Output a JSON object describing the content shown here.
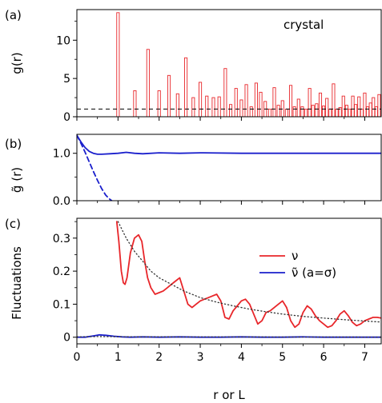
{
  "chart_data": [
    {
      "panel_label": "(a)",
      "type": "bar",
      "ylabel": "g(r)",
      "annotation": "crystal",
      "xlim": [
        0,
        7.4
      ],
      "ylim": [
        0,
        14
      ],
      "yticks": [
        0,
        5,
        10
      ],
      "reference_line": 1,
      "series": [
        {
          "name": "",
          "color": "#e8262a",
          "x": [
            1.0,
            1.41,
            1.73,
            2.0,
            2.24,
            2.45,
            2.65,
            2.83,
            3.0,
            3.16,
            3.32,
            3.46,
            3.61,
            3.74,
            3.87,
            4.0,
            4.12,
            4.24,
            4.36,
            4.47,
            4.58,
            4.69,
            4.8,
            4.9,
            5.0,
            5.1,
            5.2,
            5.29,
            5.39,
            5.48,
            5.57,
            5.66,
            5.74,
            5.83,
            5.92,
            6.0,
            6.08,
            6.16,
            6.24,
            6.32,
            6.4,
            6.48,
            6.56,
            6.63,
            6.71,
            6.78,
            6.86,
            6.93,
            7.0,
            7.07,
            7.14,
            7.21,
            7.28,
            7.35
          ],
          "values": [
            13.6,
            3.4,
            8.8,
            3.4,
            5.4,
            3.0,
            7.7,
            2.5,
            4.5,
            2.7,
            2.5,
            2.6,
            6.3,
            1.6,
            3.7,
            2.2,
            4.2,
            1.3,
            4.4,
            3.2,
            2.0,
            1.0,
            3.8,
            1.5,
            2.1,
            1.0,
            4.1,
            1.3,
            2.3,
            1.3,
            1.0,
            3.7,
            1.5,
            1.7,
            3.1,
            1.4,
            2.4,
            1.0,
            4.3,
            1.0,
            1.2,
            2.7,
            1.5,
            1.0,
            2.7,
            1.6,
            2.6,
            1.0,
            3.1,
            1.3,
            1.8,
            2.5,
            1.3,
            2.9
          ]
        }
      ]
    },
    {
      "panel_label": "(b)",
      "type": "line",
      "ylabel": "g̃ (r)",
      "xlim": [
        0,
        7.4
      ],
      "ylim": [
        0,
        1.4
      ],
      "yticks": [
        0.0,
        1.0
      ],
      "series": [
        {
          "name": "",
          "color": "#1a1fcc",
          "style": "solid",
          "x": [
            0,
            0.1,
            0.2,
            0.3,
            0.4,
            0.5,
            0.6,
            0.8,
            1.0,
            1.2,
            1.4,
            1.6,
            2.0,
            2.5,
            3.0,
            4.0,
            5.0,
            6.0,
            7.0,
            7.4
          ],
          "y": [
            1.38,
            1.24,
            1.12,
            1.04,
            1.0,
            0.98,
            0.98,
            0.99,
            1.0,
            1.02,
            1.0,
            0.99,
            1.01,
            1.0,
            1.01,
            1.0,
            1.0,
            1.0,
            1.0,
            1.0
          ]
        },
        {
          "name": "",
          "color": "#1a1fcc",
          "style": "dashed",
          "x": [
            0,
            0.1,
            0.2,
            0.3,
            0.4,
            0.5,
            0.6,
            0.7,
            0.8,
            0.85
          ],
          "y": [
            1.38,
            1.21,
            1.02,
            0.82,
            0.62,
            0.43,
            0.26,
            0.12,
            0.03,
            0.0
          ]
        }
      ]
    },
    {
      "panel_label": "(c)",
      "type": "line",
      "xlabel": "r or L",
      "ylabel": "Fluctuations",
      "xlim": [
        0,
        7.4
      ],
      "ylim": [
        -0.02,
        0.36
      ],
      "yticks": [
        0,
        0.1,
        0.2,
        0.3
      ],
      "xticks": [
        0,
        1,
        2,
        3,
        4,
        5,
        6,
        7
      ],
      "legend_position": "upper-right",
      "series": [
        {
          "name": "ν",
          "color": "#e8262a",
          "style": "solid",
          "x": [
            0.97,
            1.02,
            1.08,
            1.13,
            1.17,
            1.22,
            1.3,
            1.4,
            1.5,
            1.58,
            1.65,
            1.72,
            1.8,
            1.9,
            2.0,
            2.1,
            2.2,
            2.3,
            2.4,
            2.5,
            2.6,
            2.7,
            2.8,
            2.9,
            3.0,
            3.1,
            3.2,
            3.3,
            3.4,
            3.5,
            3.6,
            3.7,
            3.8,
            3.9,
            4.0,
            4.1,
            4.2,
            4.3,
            4.4,
            4.5,
            4.6,
            4.7,
            4.8,
            4.9,
            5.0,
            5.1,
            5.2,
            5.3,
            5.4,
            5.5,
            5.6,
            5.7,
            5.8,
            5.9,
            6.0,
            6.1,
            6.2,
            6.3,
            6.4,
            6.5,
            6.6,
            6.7,
            6.8,
            6.9,
            7.0,
            7.1,
            7.2,
            7.3,
            7.4
          ],
          "y": [
            0.35,
            0.29,
            0.2,
            0.165,
            0.16,
            0.18,
            0.255,
            0.3,
            0.31,
            0.29,
            0.23,
            0.18,
            0.15,
            0.13,
            0.135,
            0.14,
            0.15,
            0.16,
            0.17,
            0.18,
            0.14,
            0.1,
            0.09,
            0.1,
            0.11,
            0.115,
            0.12,
            0.125,
            0.13,
            0.11,
            0.06,
            0.055,
            0.08,
            0.095,
            0.11,
            0.115,
            0.1,
            0.07,
            0.04,
            0.05,
            0.075,
            0.08,
            0.09,
            0.1,
            0.11,
            0.09,
            0.05,
            0.03,
            0.04,
            0.075,
            0.095,
            0.085,
            0.065,
            0.05,
            0.04,
            0.03,
            0.035,
            0.05,
            0.07,
            0.08,
            0.065,
            0.045,
            0.035,
            0.04,
            0.05,
            0.055,
            0.06,
            0.06,
            0.058
          ]
        },
        {
          "name": "ν̃ (a=σ)",
          "color": "#1a1fcc",
          "style": "solid",
          "x": [
            0,
            0.2,
            0.4,
            0.55,
            0.7,
            0.9,
            1.1,
            1.3,
            1.6,
            2.0,
            2.5,
            3.0,
            3.5,
            4.0,
            4.5,
            5.0,
            5.5,
            6.0,
            6.5,
            7.0,
            7.4
          ],
          "y": [
            0.0,
            0.0,
            0.004,
            0.007,
            0.006,
            0.003,
            0.001,
            0.0,
            0.001,
            0.0,
            0.001,
            0.0,
            0.0,
            0.001,
            0.0,
            0.0,
            0.001,
            0.0,
            0.0,
            0.0,
            0.0
          ]
        },
        {
          "name": "",
          "color": "#333333",
          "style": "dotted",
          "x": [
            1.0,
            1.2,
            1.4,
            1.6,
            1.8,
            2.0,
            2.3,
            2.6,
            3.0,
            3.4,
            3.8,
            4.2,
            4.6,
            5.0,
            5.5,
            6.0,
            6.5,
            7.0,
            7.4
          ],
          "y": [
            0.35,
            0.3,
            0.26,
            0.23,
            0.2,
            0.18,
            0.16,
            0.14,
            0.12,
            0.106,
            0.095,
            0.085,
            0.077,
            0.07,
            0.063,
            0.058,
            0.053,
            0.049,
            0.046
          ]
        },
        {
          "name": "",
          "color": "#333333",
          "style": "dotted",
          "x": [
            0,
            0.5,
            1.0,
            1.5,
            2.0,
            3.0,
            4.0,
            5.0,
            6.0,
            7.0,
            7.4
          ],
          "y": [
            0.001,
            0.002,
            0.0015,
            0.001,
            0.001,
            0.0008,
            0.0007,
            0.0006,
            0.0005,
            0.0004,
            0.0004
          ]
        }
      ]
    }
  ]
}
